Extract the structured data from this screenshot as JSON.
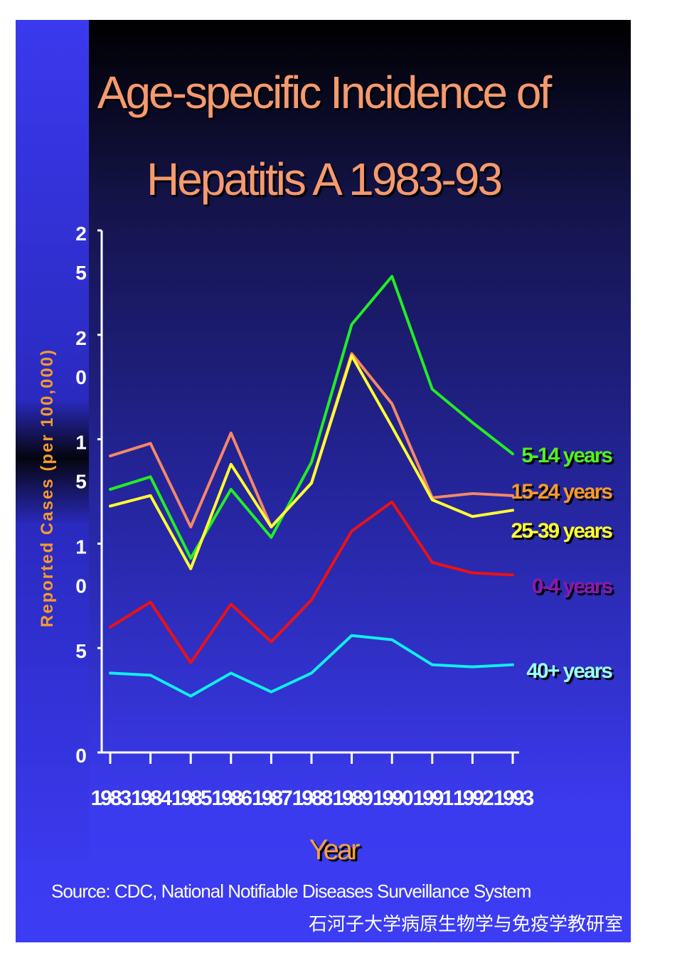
{
  "slide": {
    "title_line1": "Age-specific Incidence of",
    "title_line2": "Hepatitis A 1983-93",
    "source": "Source: CDC, National Notifiable Diseases Surveillance System",
    "institution": "石河子大学病原生物学与免疫学教研室"
  },
  "chart_data": {
    "type": "line",
    "title": "Age-specific Incidence of Hepatitis A 1983-93",
    "xlabel": "Year",
    "ylabel": "Reported Cases (per 100,000)",
    "x": [
      "1983",
      "1984",
      "1985",
      "1986",
      "1987",
      "1988",
      "1989",
      "1990",
      "1991",
      "1992",
      "1993"
    ],
    "ylim": [
      0,
      25
    ],
    "yticks": [
      {
        "value": 0,
        "label": "0"
      },
      {
        "value": 5,
        "label": "5"
      },
      {
        "value": 10,
        "label": "1 0"
      },
      {
        "value": 15,
        "label": "1 5"
      },
      {
        "value": 20,
        "label": "2 0"
      },
      {
        "value": 25,
        "label": "2 5"
      }
    ],
    "grid": false,
    "series": [
      {
        "name": "5-14 years",
        "color": "#22ee22",
        "values": [
          12.6,
          13.2,
          9.3,
          12.6,
          10.3,
          13.9,
          20.5,
          22.8,
          17.4,
          15.8,
          14.3
        ]
      },
      {
        "name": "15-24 years",
        "color": "#f58866",
        "values": [
          14.2,
          14.8,
          10.8,
          15.3,
          10.8,
          12.9,
          19.1,
          16.7,
          12.2,
          12.4,
          12.3
        ]
      },
      {
        "name": "25-39 years",
        "color": "#ffff33",
        "values": [
          11.8,
          12.3,
          8.8,
          13.8,
          10.8,
          12.9,
          19.0,
          15.6,
          12.1,
          11.3,
          11.6
        ]
      },
      {
        "name": "0-4 years",
        "color": "#ee1111",
        "values": [
          6.0,
          7.2,
          4.3,
          7.1,
          5.3,
          7.3,
          10.6,
          12.0,
          9.1,
          8.6,
          8.5
        ]
      },
      {
        "name": "40+ years",
        "color": "#11eeee",
        "values": [
          3.8,
          3.7,
          2.7,
          3.8,
          2.9,
          3.8,
          5.6,
          5.4,
          4.2,
          4.1,
          4.2
        ]
      }
    ],
    "series_label_colors": [
      "#55ee22",
      "#f59a30",
      "#ffff33",
      "#8a1ab0",
      "#99ffff"
    ]
  }
}
